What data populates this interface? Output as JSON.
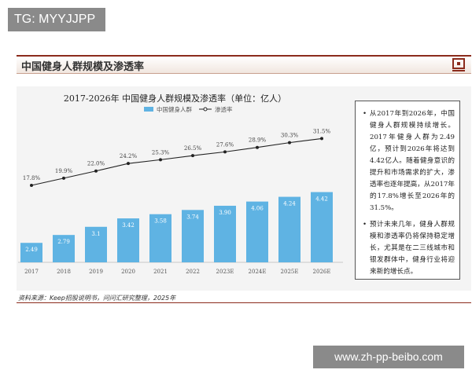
{
  "watermark_top": "TG: MYYJJPP",
  "watermark_bottom": "www.zh-pp-beibo.com",
  "header": {
    "title": "中国健身人群规模及渗透率",
    "logo_icon": "company-logo-icon",
    "accent": "#8b2b1c"
  },
  "notes": [
    "从2017年到2026年，中国健身人群规模持续增长。2017年健身人群为2.49亿，预计到2026年将达到4.42亿人。随着健身意识的提升和市场需求的扩大，渗透率也逐年提高，从2017年的17.8%增长至2026年的31.5%。",
    "预计未来几年，健身人群规模和渗透率仍将保持稳定增长，尤其是在二三线城市和银发群体中，健身行业将迎来新的增长点。"
  ],
  "source": "资料来源：Keep招股说明书，问问汇研究整理，2025年",
  "chart_data": {
    "type": "bar",
    "title": "2017-2026年 中国健身人群规模及渗透率（单位：亿人）",
    "categories": [
      "2017",
      "2018",
      "2019",
      "2020",
      "2021",
      "2022",
      "2023E",
      "2024E",
      "2025E",
      "2026E"
    ],
    "series": [
      {
        "name": "中国健身人群",
        "type": "bar",
        "color": "#5fb3e3",
        "values": [
          2.49,
          2.79,
          3.1,
          3.42,
          3.58,
          3.74,
          3.9,
          4.06,
          4.24,
          4.42
        ],
        "labels": [
          "2.49",
          "2.79",
          "3.1",
          "3.42",
          "3.58",
          "3.74",
          "3.90",
          "4.06",
          "4.24",
          "4.42"
        ]
      },
      {
        "name": "渗透率",
        "type": "line",
        "color": "#222222",
        "values": [
          17.8,
          19.9,
          22.0,
          24.2,
          25.3,
          26.5,
          27.6,
          28.9,
          30.3,
          31.5
        ],
        "labels": [
          "17.8%",
          "19.9%",
          "22.0%",
          "24.2%",
          "25.3%",
          "26.5%",
          "27.6%",
          "28.9%",
          "30.3%",
          "31.5%"
        ]
      }
    ],
    "legend": "top",
    "grid": false
  }
}
